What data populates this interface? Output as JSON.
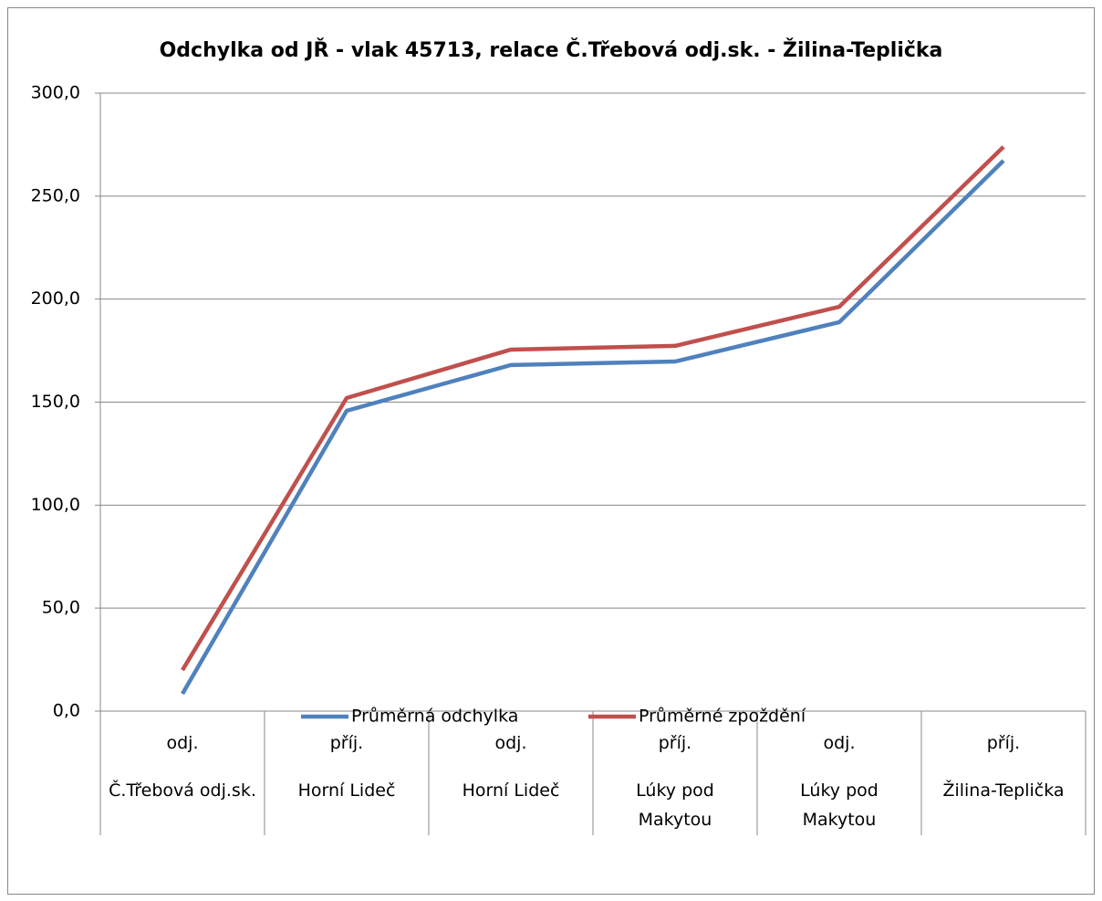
{
  "chart_data": {
    "type": "line",
    "title": "Odchylka od JŘ - vlak 45713, relace Č.Třebová odj.sk. - Žilina-Teplička",
    "categories": [
      [
        "odj.",
        "Č.Třebová odj.sk."
      ],
      [
        "příj.",
        "Horní Lideč"
      ],
      [
        "odj.",
        "Horní Lideč"
      ],
      [
        "příj.",
        "Lúky pod Makytou"
      ],
      [
        "odj.",
        "Lúky pod Makytou"
      ],
      [
        "příj.",
        "Žilina-Teplička"
      ]
    ],
    "series": [
      {
        "name": "Průměrná odchylka",
        "color": "#4f81bd",
        "values": [
          8.4,
          145.8,
          168.0,
          169.7,
          188.8,
          267.2
        ]
      },
      {
        "name": "Průměrné zpoždění",
        "color": "#c0504d",
        "values": [
          19.9,
          152.0,
          175.5,
          177.3,
          196.3,
          273.9
        ]
      }
    ],
    "ylim": [
      0,
      300
    ],
    "yticks": [
      {
        "value": 0,
        "label": "0,0"
      },
      {
        "value": 50,
        "label": "50,0"
      },
      {
        "value": 100,
        "label": "100,0"
      },
      {
        "value": 150,
        "label": "150,0"
      },
      {
        "value": 200,
        "label": "200,0"
      },
      {
        "value": 250,
        "label": "250,0"
      },
      {
        "value": 300,
        "label": "300,0"
      }
    ],
    "grid": true,
    "legend": "bottom"
  }
}
